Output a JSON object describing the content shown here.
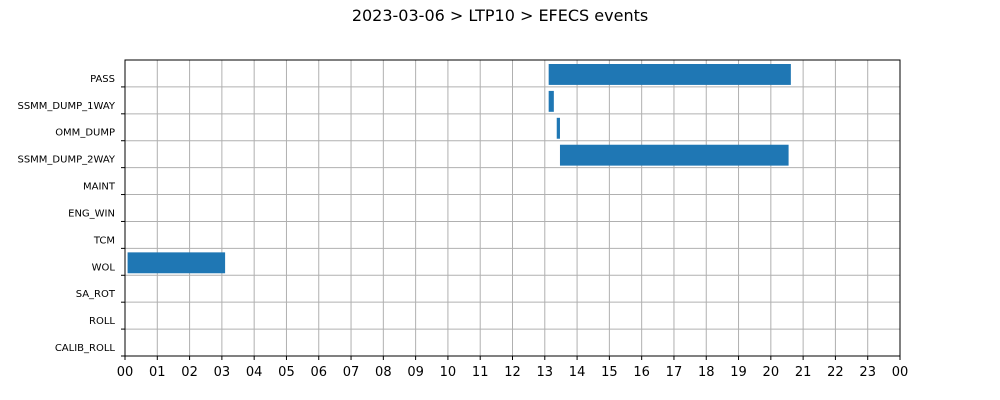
{
  "chart_data": {
    "type": "bar",
    "orientation": "horizontal-timeline",
    "title": "2023-03-06 > LTP10 > EFECS events",
    "xlabel": "",
    "ylabel": "",
    "grid": true,
    "colors": {
      "bar": "#1f77b4",
      "grid": "#b0b0b0"
    },
    "xlim": [
      0,
      24
    ],
    "x_ticks": [
      "00",
      "01",
      "02",
      "03",
      "04",
      "05",
      "06",
      "07",
      "08",
      "09",
      "10",
      "11",
      "12",
      "13",
      "14",
      "15",
      "16",
      "17",
      "18",
      "19",
      "20",
      "21",
      "22",
      "23",
      "00"
    ],
    "categories": [
      "PASS",
      "SSMM_DUMP_1WAY",
      "OMM_DUMP",
      "SSMM_DUMP_2WAY",
      "MAINT",
      "ENG_WIN",
      "TCM",
      "WOL",
      "SA_ROT",
      "ROLL",
      "CALIB_ROLL"
    ],
    "events": [
      {
        "category": "PASS",
        "start": 13.12,
        "end": 20.62
      },
      {
        "category": "SSMM_DUMP_1WAY",
        "start": 13.12,
        "end": 13.28
      },
      {
        "category": "OMM_DUMP",
        "start": 13.37,
        "end": 13.47
      },
      {
        "category": "SSMM_DUMP_2WAY",
        "start": 13.47,
        "end": 20.55
      },
      {
        "category": "WOL",
        "start": 0.08,
        "end": 3.1
      }
    ]
  }
}
